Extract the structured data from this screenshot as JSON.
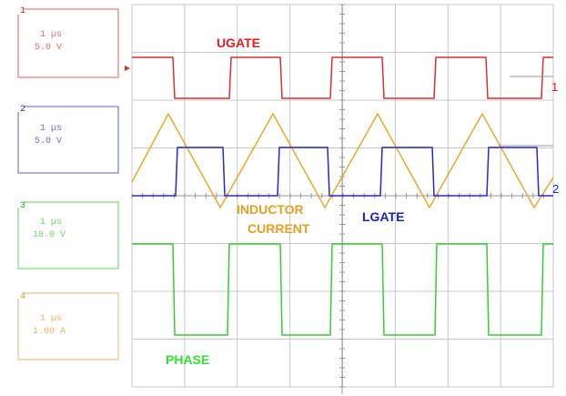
{
  "channels": [
    {
      "number": "1",
      "timebase": "1 µs",
      "scale": "5.0 V"
    },
    {
      "number": "2",
      "timebase": "1 µs",
      "scale": "5.0 V"
    },
    {
      "number": "3",
      "timebase": "1 µs",
      "scale": "10.0 V"
    },
    {
      "number": "4",
      "timebase": "1 µs",
      "scale": "1.00 A"
    }
  ],
  "labels": {
    "ugate": "UGATE",
    "inductor_current": [
      "INDUCTOR",
      "CURRENT"
    ],
    "lgate": "LGATE",
    "phase": "PHASE"
  },
  "markers": {
    "ch1": "1",
    "ch2": "2"
  }
}
